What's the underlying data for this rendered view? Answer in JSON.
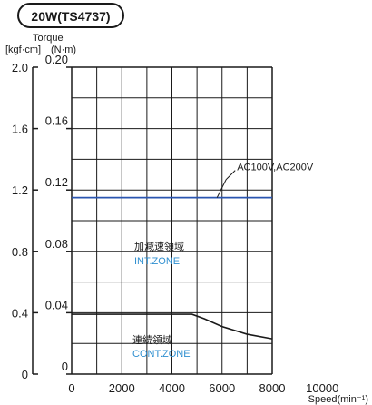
{
  "chart_data": {
    "type": "line",
    "badge": "20W(TS4737)",
    "ylabel": "Torque",
    "y_units_left": "[kgf·cm]",
    "y_units_right": "(N·m)",
    "xlabel": "Speed(min⁻¹)",
    "x_ticks": [
      "0",
      "2000",
      "4000",
      "6000",
      "8000",
      "10000"
    ],
    "x_tick_values": [
      0,
      2000,
      4000,
      6000,
      8000,
      10000
    ],
    "xlim": [
      0,
      10000
    ],
    "y_ticks_left": [
      "0",
      "0.4",
      "0.8",
      "1.2",
      "1.6",
      "2.0"
    ],
    "y_tick_values_left": [
      0,
      0.4,
      0.8,
      1.2,
      1.6,
      2.0
    ],
    "ylim_left": [
      0,
      2.0
    ],
    "y_ticks_right": [
      "0",
      "0.04",
      "0.08",
      "0.12",
      "0.16",
      "0.20"
    ],
    "y_tick_values_right": [
      0,
      0.04,
      0.08,
      0.12,
      0.16,
      0.2
    ],
    "ylim_right": [
      0,
      0.2
    ],
    "grid": true,
    "grid_x_step": 1000,
    "grid_y_step": 0.02,
    "plot_xlim": [
      0,
      8000
    ],
    "series": [
      {
        "name": "AC100V,AC200V",
        "color": "#2a55b0",
        "x": [
          0,
          8000
        ],
        "y": [
          0.115,
          0.115
        ]
      },
      {
        "color": "#1a1a1a",
        "x": [
          0,
          4800,
          5300,
          6000,
          7000,
          8000
        ],
        "y": [
          0.039,
          0.039,
          0.036,
          0.031,
          0.026,
          0.023
        ]
      }
    ],
    "annotations": {
      "voltage_label": "AC100V,AC200V",
      "int_zone_ja": "加減速領域",
      "int_zone_en": "INT.ZONE",
      "cont_zone_ja": "連続領域",
      "cont_zone_en": "CONT.ZONE"
    }
  }
}
